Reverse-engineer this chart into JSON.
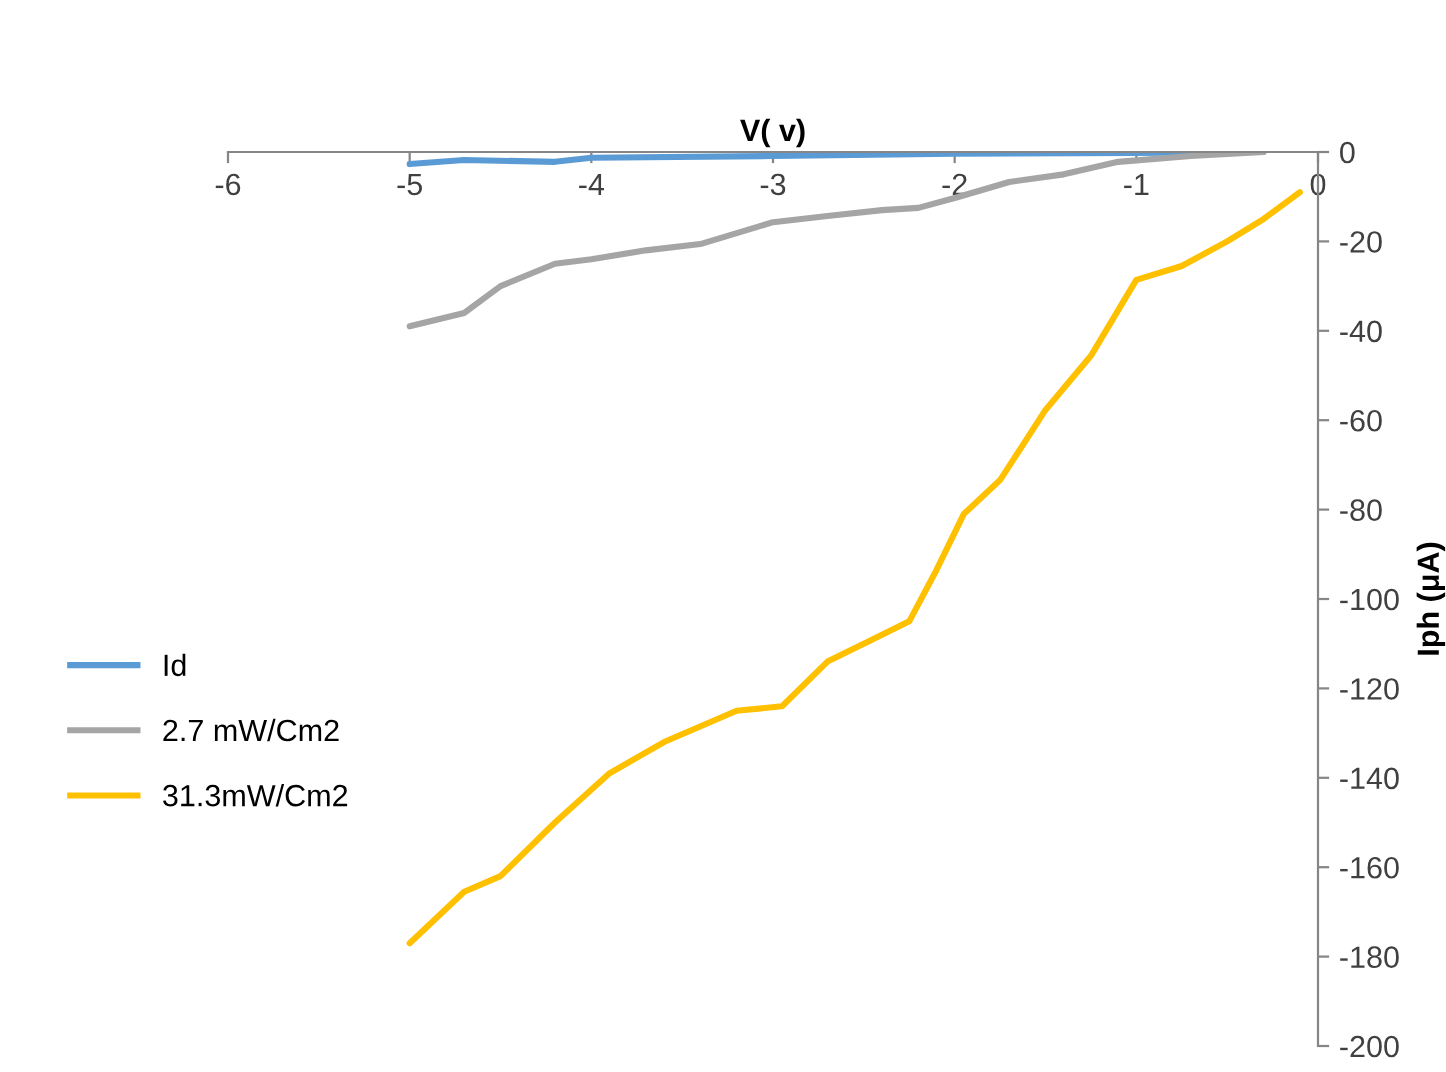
{
  "chart_data": {
    "type": "line",
    "xlabel": "V( v)",
    "ylabel": "Iph (μA)",
    "xlim": [
      -6,
      0
    ],
    "xticks": [
      -6,
      -5,
      -4,
      -3,
      -2,
      -1,
      0
    ],
    "ylim": [
      -200,
      0
    ],
    "yticks": [
      -200,
      -180,
      -160,
      -140,
      -120,
      -100,
      -80,
      -60,
      -40,
      -20,
      0
    ],
    "grid": false,
    "legend": "left",
    "marker": "none",
    "line_style": "solid",
    "series": [
      {
        "name": "Id",
        "color": "#5b9bd5",
        "x": [
          -5,
          -4.7,
          -4.2,
          -4,
          -3,
          -2,
          -1,
          -0.3
        ],
        "values": [
          -2.7,
          -1.8,
          -2.2,
          -1.3,
          -0.9,
          -0.4,
          -0.2,
          0
        ]
      },
      {
        "name": "2.7 mW/Cm2",
        "color": "#a5a5a5",
        "x": [
          -5,
          -4.7,
          -4.5,
          -4.2,
          -4,
          -3.7,
          -3.4,
          -3,
          -2.7,
          -2.4,
          -2.2,
          -2,
          -1.7,
          -1.4,
          -1.1,
          -0.7,
          -0.3
        ],
        "values": [
          -39,
          -36,
          -30,
          -25,
          -24,
          -22,
          -20.6,
          -15.7,
          -14.3,
          -13,
          -12.5,
          -10.3,
          -6.7,
          -5,
          -2.2,
          -0.9,
          0
        ]
      },
      {
        "name": "31.3mW/Cm2",
        "color": "#ffc000",
        "x": [
          -5,
          -4.7,
          -4.5,
          -4.2,
          -3.9,
          -3.6,
          -3.2,
          -2.95,
          -2.7,
          -2.45,
          -2.25,
          -2.1,
          -1.95,
          -1.75,
          -1.5,
          -1.25,
          -1,
          -0.75,
          -0.5,
          -0.3,
          -0.1
        ],
        "values": [
          -177,
          -165.5,
          -162,
          -150,
          -139,
          -132,
          -125,
          -124,
          -114,
          -109,
          -105,
          -93.5,
          -81,
          -73.4,
          -57.7,
          -45.6,
          -28.6,
          -25.5,
          -20,
          -15,
          -9
        ]
      }
    ]
  }
}
